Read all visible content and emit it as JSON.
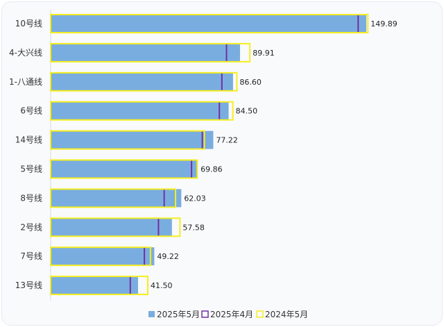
{
  "chart_data": {
    "type": "bar",
    "orientation": "horizontal",
    "categories": [
      "10号线",
      "4-大兴线",
      "1-八通线",
      "6号线",
      "14号线",
      "5号线",
      "8号线",
      "2号线",
      "7号线",
      "13号线"
    ],
    "series": [
      {
        "name": "2025年5月",
        "values": [
          149.89,
          89.91,
          86.6,
          84.5,
          77.22,
          69.86,
          62.03,
          57.58,
          49.22,
          41.5
        ],
        "color": "#7aaddf",
        "style": "filled bar"
      },
      {
        "name": "2025年4月",
        "values": [
          146.0,
          83.5,
          81.3,
          80.1,
          72.0,
          66.9,
          53.9,
          51.2,
          44.5,
          37.8
        ],
        "color": "#7030a0",
        "style": "vertical marker line"
      },
      {
        "name": "2024年5月",
        "values": [
          150.6,
          94.6,
          88.4,
          86.5,
          73.0,
          69.6,
          59.3,
          61.4,
          47.4,
          46.1
        ],
        "color": "#f5ee1e",
        "style": "outline bar"
      }
    ],
    "data_labels": [
      "149.89",
      "89.91",
      "86.60",
      "84.50",
      "77.22",
      "69.86",
      "62.03",
      "57.58",
      "49.22",
      "41.50"
    ],
    "xlim": [
      0,
      153
    ],
    "legend_position": "bottom-center",
    "grid": false,
    "title": "",
    "xlabel": "",
    "ylabel": ""
  }
}
